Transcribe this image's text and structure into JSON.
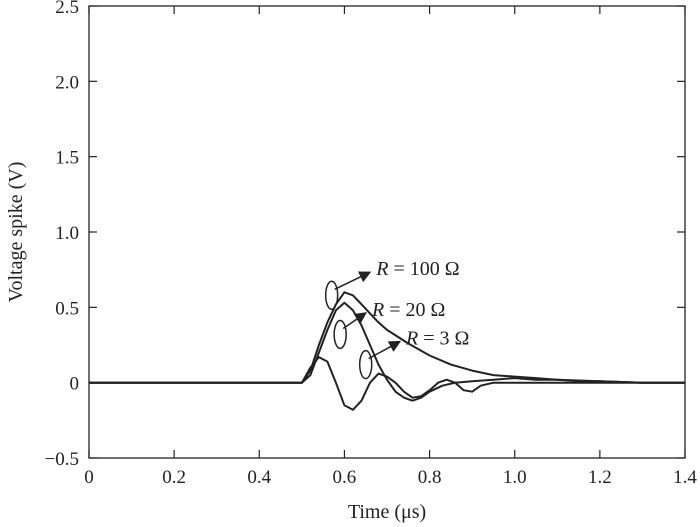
{
  "chart_data": {
    "type": "line",
    "title": "",
    "xlabel": "Time (μs)",
    "ylabel": "Voltage spike (V)",
    "xlim": [
      0,
      1.4
    ],
    "ylim": [
      -0.5,
      2.5
    ],
    "xticks": [
      0,
      0.2,
      0.4,
      0.6,
      0.8,
      1.0,
      1.2,
      1.4
    ],
    "xtick_labels": [
      "0",
      "0.2",
      "0.4",
      "0.6",
      "0.8",
      "1.0",
      "1.2",
      "1.4"
    ],
    "yticks": [
      -0.5,
      0,
      0.5,
      1.0,
      1.5,
      2.0,
      2.5
    ],
    "ytick_labels": [
      "−0.5",
      "0",
      "0.5",
      "1.0",
      "1.5",
      "2.0",
      "2.5"
    ],
    "grid": false,
    "legend": "none",
    "line_color": "#222222",
    "series": [
      {
        "x": [
          0,
          0.1,
          0.2,
          0.3,
          0.4,
          0.5,
          0.52,
          0.54,
          0.56,
          0.58,
          0.6,
          0.62,
          0.64,
          0.66,
          0.68,
          0.7,
          0.75,
          0.8,
          0.85,
          0.9,
          0.95,
          1.0,
          1.05,
          1.1,
          1.15,
          1.2,
          1.3,
          1.4
        ],
        "y": [
          0,
          0,
          0,
          0,
          0,
          0,
          0.08,
          0.25,
          0.4,
          0.52,
          0.6,
          0.58,
          0.52,
          0.46,
          0.4,
          0.35,
          0.26,
          0.18,
          0.12,
          0.08,
          0.05,
          0.04,
          0.03,
          0.02,
          0.01,
          0.01,
          0.0,
          0.0
        ]
      },
      {
        "x": [
          0,
          0.1,
          0.2,
          0.3,
          0.4,
          0.5,
          0.52,
          0.54,
          0.56,
          0.58,
          0.6,
          0.62,
          0.64,
          0.66,
          0.68,
          0.7,
          0.72,
          0.74,
          0.76,
          0.78,
          0.8,
          0.83,
          0.86,
          0.9,
          0.95,
          1.0,
          1.05,
          1.1,
          1.2,
          1.3,
          1.4
        ],
        "y": [
          0,
          0,
          0,
          0,
          0,
          0,
          0.05,
          0.2,
          0.35,
          0.48,
          0.53,
          0.48,
          0.38,
          0.25,
          0.12,
          0.02,
          -0.06,
          -0.1,
          -0.12,
          -0.1,
          -0.06,
          -0.02,
          0.0,
          0.01,
          0.02,
          0.03,
          0.02,
          0.02,
          0.01,
          0.0,
          0.0
        ]
      },
      {
        "x": [
          0,
          0.1,
          0.2,
          0.3,
          0.4,
          0.5,
          0.52,
          0.54,
          0.56,
          0.58,
          0.6,
          0.62,
          0.64,
          0.66,
          0.68,
          0.7,
          0.72,
          0.74,
          0.76,
          0.78,
          0.8,
          0.82,
          0.84,
          0.86,
          0.88,
          0.9,
          0.92,
          0.95,
          1.0,
          1.1,
          1.2,
          1.3,
          1.4
        ],
        "y": [
          0,
          0,
          0,
          0,
          0,
          0,
          0.1,
          0.17,
          0.14,
          0.0,
          -0.15,
          -0.18,
          -0.12,
          0.0,
          0.06,
          0.04,
          0.0,
          -0.06,
          -0.1,
          -0.09,
          -0.05,
          0.0,
          0.02,
          0.0,
          -0.05,
          -0.06,
          -0.02,
          0.0,
          0.0,
          0.0,
          0.0,
          0.0,
          0.0
        ]
      }
    ],
    "annotations": [
      {
        "var": "R",
        "rest": " = 100 Ω",
        "tip": [
          0.57,
          0.58
        ],
        "label_at": [
          0.67,
          0.76
        ]
      },
      {
        "var": "R",
        "rest": " = 20 Ω",
        "tip": [
          0.59,
          0.32
        ],
        "label_at": [
          0.66,
          0.49
        ]
      },
      {
        "var": "R",
        "rest": " = 3 Ω",
        "tip": [
          0.65,
          0.12
        ],
        "label_at": [
          0.74,
          0.3
        ]
      }
    ]
  }
}
